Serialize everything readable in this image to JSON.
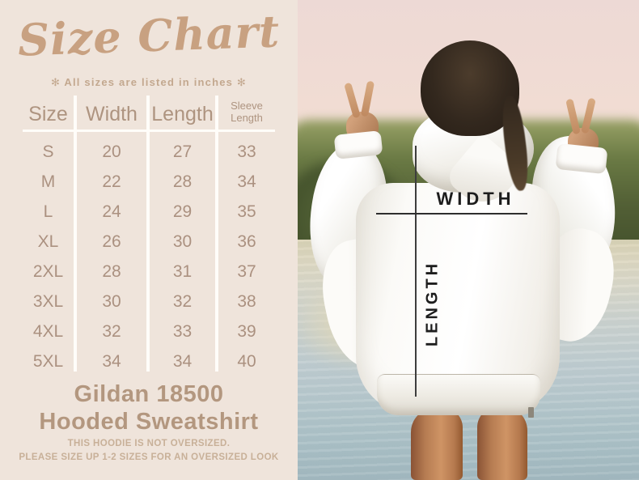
{
  "left_panel": {
    "title": "Size Chart",
    "subtitle": "✻ All sizes are listed in inches ✻",
    "table": {
      "columns": [
        "Size",
        "Width",
        "Length",
        "Sleeve Length"
      ],
      "rows": [
        [
          "S",
          "20",
          "27",
          "33"
        ],
        [
          "M",
          "22",
          "28",
          "34"
        ],
        [
          "L",
          "24",
          "29",
          "35"
        ],
        [
          "XL",
          "26",
          "30",
          "36"
        ],
        [
          "2XL",
          "28",
          "31",
          "37"
        ],
        [
          "3XL",
          "30",
          "32",
          "38"
        ],
        [
          "4XL",
          "32",
          "33",
          "39"
        ],
        [
          "5XL",
          "34",
          "34",
          "40"
        ]
      ]
    },
    "product_name_line1": "Gildan 18500",
    "product_name_line2": "Hooded Sweatshirt",
    "note_line1": "THIS HOODIE IS NOT OVERSIZED.",
    "note_line2": "PLEASE SIZE UP 1-2 SIZES FOR AN OVERSIZED LOOK"
  },
  "photo": {
    "width_label": "WIDTH",
    "length_label": "LENGTH"
  },
  "colors": {
    "panel_bg": "#efe4db",
    "accent_tan": "#c8a181",
    "table_text": "#ab9180",
    "divider_white": "#fffdf9",
    "annotation": "#1d1d1d",
    "sky_pink": "#edd9d5",
    "bush_green": "#46542e",
    "water_blue": "#a8bec4",
    "hoodie_white": "#ffffff",
    "hair_brown": "#33281e",
    "skin_tan": "#b67c52"
  }
}
